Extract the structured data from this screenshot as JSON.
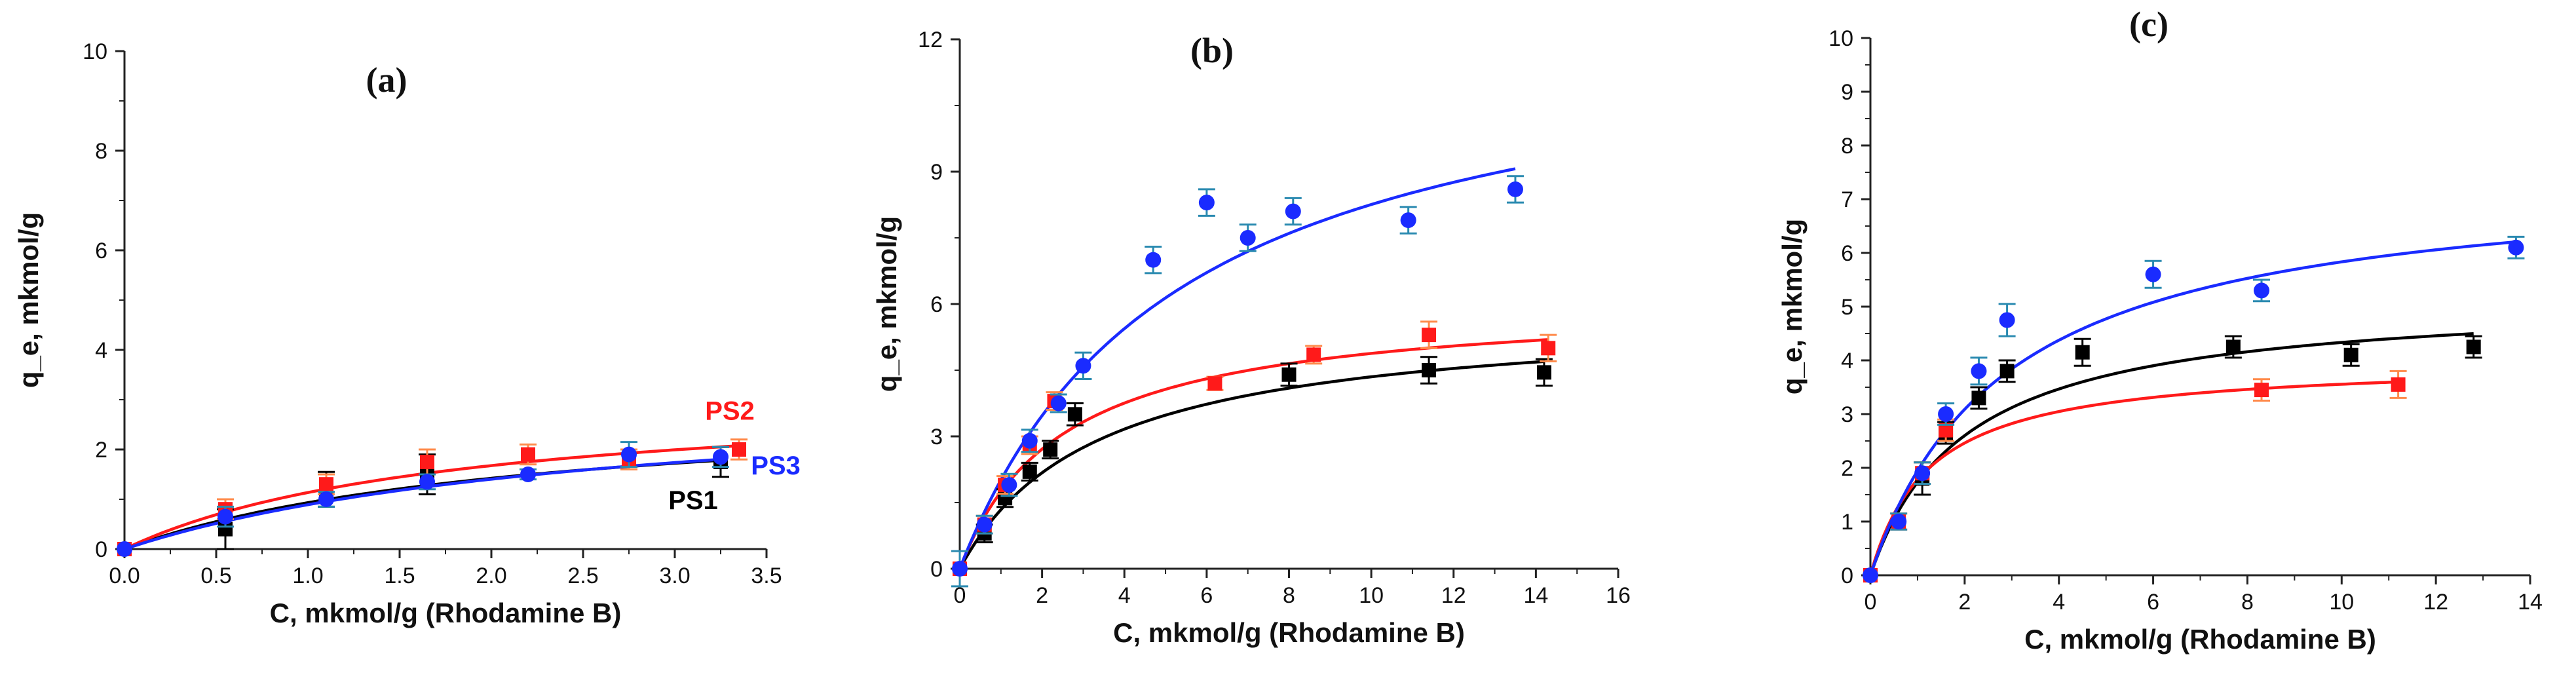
{
  "colors": {
    "PS1": "#000000",
    "PS2": "#ff1a1a",
    "PS3": "#1a2bff",
    "err_PS2": "#ff8a4a",
    "err_PS3": "#2a8ab0"
  },
  "chart_data": [
    {
      "panel": "(a)",
      "type": "scatter",
      "xlabel": "C, mkmol/g (Rhodamine B)",
      "ylabel": "q_e, mkmol/g",
      "xlim": [
        0,
        3.5
      ],
      "ylim": [
        0,
        10
      ],
      "xticks": [
        0.0,
        0.5,
        1.0,
        1.5,
        2.0,
        2.5,
        3.0,
        3.5
      ],
      "xtick_labels": [
        "0.0",
        "0.5",
        "1.0",
        "1.5",
        "2.0",
        "2.5",
        "3.0",
        "3.5"
      ],
      "yticks": [
        0,
        2,
        4,
        6,
        8,
        10
      ],
      "ytick_labels": [
        "0",
        "2",
        "4",
        "6",
        "8",
        "10"
      ],
      "annotations": [
        {
          "text": "PS1",
          "series": "PS1",
          "x": 3.1,
          "y": 0.8
        },
        {
          "text": "PS2",
          "series": "PS2",
          "x": 3.3,
          "y": 2.6
        },
        {
          "text": "PS3",
          "series": "PS3",
          "x": 3.55,
          "y": 1.5
        }
      ],
      "series": [
        {
          "name": "PS1",
          "marker": "square",
          "fit": {
            "qmax": 3.0,
            "K": 0.45
          },
          "points": [
            {
              "x": 0,
              "y": 0,
              "err": 0
            },
            {
              "x": 0.55,
              "y": 0.4,
              "err": 0.4
            },
            {
              "x": 1.1,
              "y": 1.2,
              "err": 0.35
            },
            {
              "x": 1.65,
              "y": 1.5,
              "err": 0.4
            },
            {
              "x": 3.25,
              "y": 1.75,
              "err": 0.3
            }
          ]
        },
        {
          "name": "PS2",
          "marker": "square",
          "fit": {
            "qmax": 3.2,
            "K": 0.55
          },
          "points": [
            {
              "x": 0,
              "y": 0,
              "err": 0
            },
            {
              "x": 0.55,
              "y": 0.8,
              "err": 0.2
            },
            {
              "x": 1.1,
              "y": 1.3,
              "err": 0.2
            },
            {
              "x": 1.65,
              "y": 1.75,
              "err": 0.25
            },
            {
              "x": 2.2,
              "y": 1.9,
              "err": 0.2
            },
            {
              "x": 2.75,
              "y": 1.8,
              "err": 0.2
            },
            {
              "x": 3.35,
              "y": 2.0,
              "err": 0.2
            }
          ]
        },
        {
          "name": "PS3",
          "marker": "circle",
          "fit": {
            "qmax": 3.3,
            "K": 0.37
          },
          "points": [
            {
              "x": 0,
              "y": 0,
              "err": 0
            },
            {
              "x": 0.55,
              "y": 0.65,
              "err": 0.2
            },
            {
              "x": 1.1,
              "y": 1.0,
              "err": 0.15
            },
            {
              "x": 1.65,
              "y": 1.35,
              "err": 0.15
            },
            {
              "x": 2.2,
              "y": 1.5,
              "err": 0.1
            },
            {
              "x": 2.75,
              "y": 1.9,
              "err": 0.25
            },
            {
              "x": 3.25,
              "y": 1.85,
              "err": 0.2
            }
          ]
        }
      ]
    },
    {
      "panel": "(b)",
      "type": "scatter",
      "xlabel": "C, mkmol/g (Rhodamine B)",
      "ylabel": "q_e, mkmol/g",
      "xlim": [
        0,
        16
      ],
      "ylim": [
        0,
        12
      ],
      "xticks": [
        0,
        2,
        4,
        6,
        8,
        10,
        12,
        14,
        16
      ],
      "xtick_labels": [
        "0",
        "2",
        "4",
        "6",
        "8",
        "10",
        "12",
        "14",
        "16"
      ],
      "yticks": [
        0,
        3,
        6,
        9,
        12
      ],
      "ytick_labels": [
        "0",
        "3",
        "6",
        "9",
        "12"
      ],
      "annotations": [],
      "series": [
        {
          "name": "PS1",
          "marker": "square",
          "fit": {
            "qmax": 5.8,
            "K": 0.3
          },
          "points": [
            {
              "x": 0,
              "y": 0,
              "err": 0
            },
            {
              "x": 0.6,
              "y": 0.8,
              "err": 0.2
            },
            {
              "x": 1.1,
              "y": 1.6,
              "err": 0.2
            },
            {
              "x": 1.7,
              "y": 2.2,
              "err": 0.2
            },
            {
              "x": 2.2,
              "y": 2.7,
              "err": 0.2
            },
            {
              "x": 2.8,
              "y": 3.5,
              "err": 0.25
            },
            {
              "x": 8.0,
              "y": 4.4,
              "err": 0.25
            },
            {
              "x": 11.4,
              "y": 4.5,
              "err": 0.3
            },
            {
              "x": 14.2,
              "y": 4.45,
              "err": 0.3
            }
          ]
        },
        {
          "name": "PS2",
          "marker": "square",
          "fit": {
            "qmax": 6.1,
            "K": 0.4
          },
          "points": [
            {
              "x": 0,
              "y": 0,
              "err": 0
            },
            {
              "x": 0.6,
              "y": 1.0,
              "err": 0.2
            },
            {
              "x": 1.1,
              "y": 1.9,
              "err": 0.2
            },
            {
              "x": 1.7,
              "y": 2.8,
              "err": 0.2
            },
            {
              "x": 2.3,
              "y": 3.8,
              "err": 0.2
            },
            {
              "x": 6.2,
              "y": 4.2,
              "err": 0.15
            },
            {
              "x": 8.6,
              "y": 4.85,
              "err": 0.2
            },
            {
              "x": 11.4,
              "y": 5.3,
              "err": 0.3
            },
            {
              "x": 14.3,
              "y": 5.0,
              "err": 0.3
            }
          ]
        },
        {
          "name": "PS3",
          "marker": "circle",
          "fit": {
            "qmax": 12.6,
            "K": 0.19
          },
          "points": [
            {
              "x": 0,
              "y": 0,
              "err": 0.4
            },
            {
              "x": 0.6,
              "y": 1.0,
              "err": 0.2
            },
            {
              "x": 1.2,
              "y": 1.9,
              "err": 0.25
            },
            {
              "x": 1.7,
              "y": 2.9,
              "err": 0.25
            },
            {
              "x": 2.4,
              "y": 3.75,
              "err": 0.2
            },
            {
              "x": 3.0,
              "y": 4.6,
              "err": 0.3
            },
            {
              "x": 4.7,
              "y": 7.0,
              "err": 0.3
            },
            {
              "x": 6.0,
              "y": 8.3,
              "err": 0.3
            },
            {
              "x": 7.0,
              "y": 7.5,
              "err": 0.3
            },
            {
              "x": 8.1,
              "y": 8.1,
              "err": 0.3
            },
            {
              "x": 10.9,
              "y": 7.9,
              "err": 0.3
            },
            {
              "x": 13.5,
              "y": 8.6,
              "err": 0.3
            }
          ]
        }
      ]
    },
    {
      "panel": "(c)",
      "type": "scatter",
      "xlabel": "C, mkmol/g (Rhodamine B)",
      "ylabel": "q_e, mkmol/g",
      "xlim": [
        0,
        14
      ],
      "ylim": [
        0,
        10
      ],
      "xticks": [
        0,
        2,
        4,
        6,
        8,
        10,
        12,
        14
      ],
      "xtick_labels": [
        "0",
        "2",
        "4",
        "6",
        "8",
        "10",
        "12",
        "14"
      ],
      "yticks": [
        0,
        1,
        2,
        3,
        4,
        5,
        6,
        7,
        8,
        9,
        10
      ],
      "ytick_labels": [
        "0",
        "1",
        "2",
        "3",
        "4",
        "5",
        "6",
        "7",
        "8",
        "9",
        "10"
      ],
      "annotations": [],
      "series": [
        {
          "name": "PS1",
          "marker": "square",
          "fit": {
            "qmax": 5.2,
            "K": 0.5
          },
          "points": [
            {
              "x": 0,
              "y": 0,
              "err": 0
            },
            {
              "x": 1.1,
              "y": 1.8,
              "err": 0.3
            },
            {
              "x": 1.6,
              "y": 2.65,
              "err": 0.2
            },
            {
              "x": 2.3,
              "y": 3.3,
              "err": 0.2
            },
            {
              "x": 2.9,
              "y": 3.8,
              "err": 0.2
            },
            {
              "x": 4.5,
              "y": 4.15,
              "err": 0.25
            },
            {
              "x": 7.7,
              "y": 4.25,
              "err": 0.2
            },
            {
              "x": 10.2,
              "y": 4.1,
              "err": 0.2
            },
            {
              "x": 12.8,
              "y": 4.25,
              "err": 0.2
            }
          ]
        },
        {
          "name": "PS2",
          "marker": "square",
          "fit": {
            "qmax": 4.0,
            "K": 0.8
          },
          "points": [
            {
              "x": 0,
              "y": 0,
              "err": 0
            },
            {
              "x": 0.6,
              "y": 1.0,
              "err": 0.15
            },
            {
              "x": 1.1,
              "y": 1.9,
              "err": 0.2
            },
            {
              "x": 1.6,
              "y": 2.7,
              "err": 0.2
            },
            {
              "x": 8.3,
              "y": 3.45,
              "err": 0.2
            },
            {
              "x": 11.2,
              "y": 3.55,
              "err": 0.25
            }
          ]
        },
        {
          "name": "PS3",
          "marker": "circle",
          "fit": {
            "qmax": 7.5,
            "K": 0.35
          },
          "points": [
            {
              "x": 0,
              "y": 0,
              "err": 0
            },
            {
              "x": 0.6,
              "y": 1.0,
              "err": 0.15
            },
            {
              "x": 1.1,
              "y": 1.9,
              "err": 0.2
            },
            {
              "x": 1.6,
              "y": 3.0,
              "err": 0.2
            },
            {
              "x": 2.3,
              "y": 3.8,
              "err": 0.25
            },
            {
              "x": 2.9,
              "y": 4.75,
              "err": 0.3
            },
            {
              "x": 6.0,
              "y": 5.6,
              "err": 0.25
            },
            {
              "x": 8.3,
              "y": 5.3,
              "err": 0.2
            },
            {
              "x": 13.7,
              "y": 6.1,
              "err": 0.2
            }
          ]
        }
      ]
    }
  ]
}
